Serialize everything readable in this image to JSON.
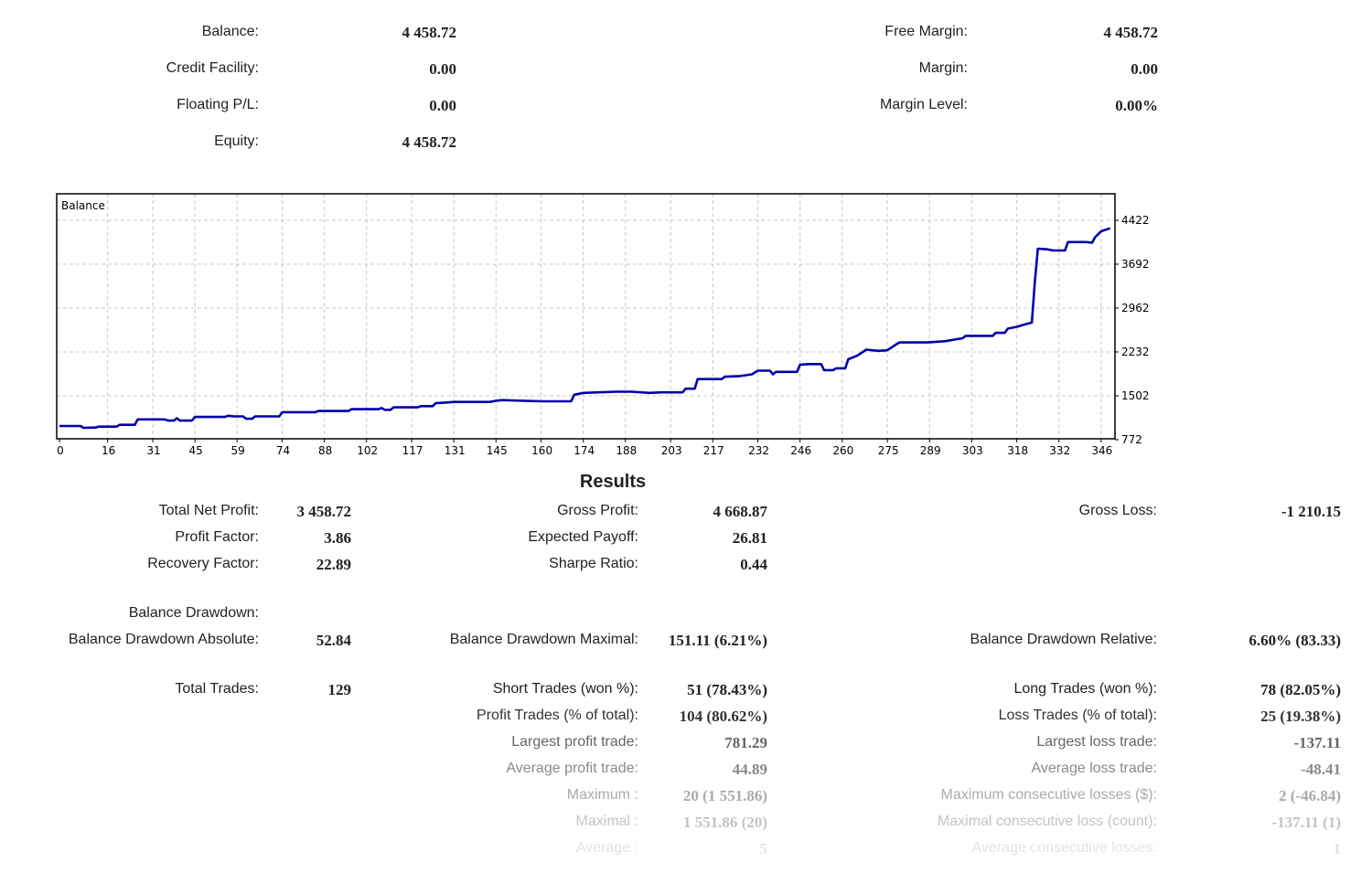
{
  "account": {
    "balance_label": "Balance:",
    "balance_value": "4 458.72",
    "credit_label": "Credit Facility:",
    "credit_value": "0.00",
    "floating_label": "Floating P/L:",
    "floating_value": "0.00",
    "equity_label": "Equity:",
    "equity_value": "4 458.72",
    "free_margin_label": "Free Margin:",
    "free_margin_value": "4 458.72",
    "margin_label": "Margin:",
    "margin_value": "0.00",
    "margin_level_label": "Margin Level:",
    "margin_level_value": "0.00%"
  },
  "chart_data": {
    "type": "line",
    "title": "Balance",
    "xlabel": "",
    "ylabel": "",
    "x_ticks": [
      0,
      16,
      31,
      45,
      59,
      74,
      88,
      102,
      117,
      131,
      145,
      160,
      174,
      188,
      203,
      217,
      232,
      246,
      260,
      275,
      289,
      303,
      318,
      332,
      346
    ],
    "y_ticks": [
      772,
      1502,
      2232,
      2962,
      3692,
      4422
    ],
    "xlim": [
      0,
      350
    ],
    "ylim": [
      772,
      4850
    ],
    "grid": true,
    "series": [
      {
        "name": "Balance",
        "color": "#0000aa",
        "points": [
          [
            0,
            1000
          ],
          [
            7,
            1000
          ],
          [
            8,
            970
          ],
          [
            12,
            975
          ],
          [
            13,
            990
          ],
          [
            19,
            990
          ],
          [
            20,
            1020
          ],
          [
            25,
            1020
          ],
          [
            26,
            1110
          ],
          [
            35,
            1110
          ],
          [
            36,
            1090
          ],
          [
            38,
            1090
          ],
          [
            39,
            1130
          ],
          [
            40,
            1090
          ],
          [
            44,
            1090
          ],
          [
            45,
            1150
          ],
          [
            55,
            1150
          ],
          [
            56,
            1170
          ],
          [
            58,
            1160
          ],
          [
            61,
            1160
          ],
          [
            62,
            1120
          ],
          [
            64,
            1120
          ],
          [
            65,
            1160
          ],
          [
            73,
            1160
          ],
          [
            74,
            1230
          ],
          [
            85,
            1230
          ],
          [
            86,
            1250
          ],
          [
            96,
            1250
          ],
          [
            97,
            1280
          ],
          [
            106,
            1280
          ],
          [
            107,
            1300
          ],
          [
            108,
            1270
          ],
          [
            110,
            1270
          ],
          [
            111,
            1310
          ],
          [
            119,
            1310
          ],
          [
            120,
            1330
          ],
          [
            124,
            1330
          ],
          [
            125,
            1380
          ],
          [
            128,
            1390
          ],
          [
            131,
            1400
          ],
          [
            143,
            1400
          ],
          [
            145,
            1420
          ],
          [
            147,
            1430
          ],
          [
            160,
            1410
          ],
          [
            170,
            1410
          ],
          [
            171,
            1520
          ],
          [
            174,
            1550
          ],
          [
            185,
            1570
          ],
          [
            190,
            1570
          ],
          [
            196,
            1550
          ],
          [
            200,
            1560
          ],
          [
            207,
            1560
          ],
          [
            208,
            1620
          ],
          [
            211,
            1620
          ],
          [
            212,
            1780
          ],
          [
            220,
            1780
          ],
          [
            221,
            1820
          ],
          [
            226,
            1830
          ],
          [
            230,
            1860
          ],
          [
            232,
            1920
          ],
          [
            236,
            1920
          ],
          [
            237,
            1860
          ],
          [
            238,
            1900
          ],
          [
            245,
            1900
          ],
          [
            246,
            2020
          ],
          [
            249,
            2030
          ],
          [
            253,
            2030
          ],
          [
            254,
            1930
          ],
          [
            257,
            1930
          ],
          [
            258,
            1960
          ],
          [
            261,
            1960
          ],
          [
            262,
            2110
          ],
          [
            265,
            2170
          ],
          [
            268,
            2270
          ],
          [
            272,
            2250
          ],
          [
            275,
            2260
          ],
          [
            278,
            2360
          ],
          [
            279,
            2390
          ],
          [
            288,
            2390
          ],
          [
            294,
            2410
          ],
          [
            300,
            2460
          ],
          [
            301,
            2500
          ],
          [
            306,
            2500
          ],
          [
            310,
            2500
          ],
          [
            311,
            2550
          ],
          [
            314,
            2550
          ],
          [
            315,
            2620
          ],
          [
            318,
            2650
          ],
          [
            320,
            2680
          ],
          [
            323,
            2720
          ],
          [
            324,
            3400
          ],
          [
            325,
            3950
          ],
          [
            328,
            3940
          ],
          [
            330,
            3920
          ],
          [
            334,
            3920
          ],
          [
            335,
            4060
          ],
          [
            341,
            4060
          ],
          [
            343,
            4050
          ],
          [
            344,
            4140
          ],
          [
            346,
            4240
          ],
          [
            349,
            4290
          ]
        ]
      }
    ]
  },
  "results": {
    "title": "Results",
    "rows": [
      {
        "label": "Total Net Profit:",
        "value": "3 458.72",
        "color": "#222222"
      },
      {
        "label": "Profit Factor:",
        "value": "3.86",
        "color": "#222222"
      },
      {
        "label": "Recovery Factor:",
        "value": "22.89",
        "color": "#222222"
      },
      {
        "label": "Gross Profit:",
        "value": "4 668.87",
        "color": "#222222"
      },
      {
        "label": "Expected Payoff:",
        "value": "26.81",
        "color": "#222222"
      },
      {
        "label": "Sharpe Ratio:",
        "value": "0.44",
        "color": "#222222"
      },
      {
        "label": "Gross Loss:",
        "value": "-1 210.15",
        "color": "#222222"
      },
      {
        "label": "Balance Drawdown:",
        "value": "",
        "color": "#222222"
      },
      {
        "label": "Balance Drawdown Absolute:",
        "value": "52.84",
        "color": "#222222"
      },
      {
        "label": "Balance Drawdown Maximal:",
        "value": "151.11 (6.21%)",
        "color": "#222222"
      },
      {
        "label": "Balance Drawdown Relative:",
        "value": "6.60% (83.33)",
        "color": "#222222"
      },
      {
        "label": "Total Trades:",
        "value": "129",
        "color": "#222222"
      },
      {
        "label": "Short Trades (won %):",
        "value": "51 (78.43%)",
        "color": "#222222"
      },
      {
        "label": "Long Trades (won %):",
        "value": "78 (82.05%)",
        "color": "#222222"
      },
      {
        "label": "Profit Trades (% of total):",
        "value": "104 (80.62%)",
        "color": "#333333"
      },
      {
        "label": "Loss Trades (% of total):",
        "value": "25 (19.38%)",
        "color": "#333333"
      },
      {
        "label": "Largest profit trade:",
        "value": "781.29",
        "color": "#666666"
      },
      {
        "label": "Largest loss trade:",
        "value": "-137.11",
        "color": "#666666"
      },
      {
        "label": "Average profit trade:",
        "value": "44.89",
        "color": "#8a8a8a"
      },
      {
        "label": "Average loss trade:",
        "value": "-48.41",
        "color": "#8a8a8a"
      },
      {
        "label": "Maximum :",
        "value": "20 (1 551.86)",
        "color": "#ababab"
      },
      {
        "label": "Maximum consecutive losses ($):",
        "value": "2 (-46.84)",
        "color": "#ababab"
      },
      {
        "label": "Maximal :",
        "value": "1 551.86 (20)",
        "color": "#c4c4c4"
      },
      {
        "label": "Maximal consecutive loss (count):",
        "value": "-137.11 (1)",
        "color": "#c4c4c4"
      },
      {
        "label": "Average :",
        "value": "5",
        "color": "#e3e3e3"
      },
      {
        "label": "Average consecutive losses:",
        "value": "1",
        "color": "#e3e3e3"
      }
    ]
  }
}
